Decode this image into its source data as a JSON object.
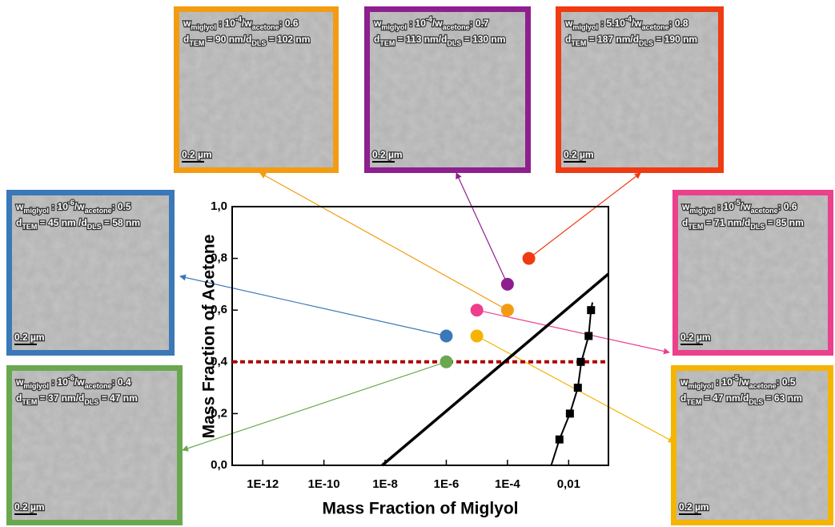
{
  "chart_data": {
    "type": "scatter",
    "x_label": "Mass Fraction of Miglyol",
    "y_label": "Mass Fraction of Acetone",
    "log_x": true,
    "xlim": [
      1e-13,
      0.2
    ],
    "xticks": [
      {
        "value": 1e-12,
        "label": "1E-12"
      },
      {
        "value": 1e-10,
        "label": "1E-10"
      },
      {
        "value": 1e-08,
        "label": "1E-8"
      },
      {
        "value": 1e-06,
        "label": "1E-6"
      },
      {
        "value": 0.0001,
        "label": "1E-4"
      },
      {
        "value": 0.01,
        "label": "0,01"
      }
    ],
    "ylim": [
      0,
      1
    ],
    "yticks": [
      {
        "value": 0,
        "label": "0,0"
      },
      {
        "value": 0.2,
        "label": "0,2"
      },
      {
        "value": 0.4,
        "label": "0,4"
      },
      {
        "value": 0.6,
        "label": "0,6"
      },
      {
        "value": 0.8,
        "label": "0,8"
      },
      {
        "value": 1,
        "label": "1,0"
      }
    ],
    "points": {
      "x": [
        0.0001,
        0.0001,
        0.0005,
        1e-06,
        1e-05,
        1e-06,
        1e-05
      ],
      "values": [
        0.6,
        0.7,
        0.8,
        0.5,
        0.6,
        0.4,
        0.5
      ],
      "colors": [
        "#f39c12",
        "#8e1f8e",
        "#f03a12",
        "#3a78b8",
        "#ec3f8c",
        "#6aa84f",
        "#f4b400"
      ]
    },
    "boundary": {
      "x": [
        8e-09,
        0.2
      ],
      "values": [
        0,
        0.74
      ],
      "color": "#000000"
    },
    "fit": {
      "x": [
        0.0027,
        0.005,
        0.011,
        0.02,
        0.026,
        0.045,
        0.054,
        0.06
      ],
      "values": [
        0,
        0.1,
        0.2,
        0.3,
        0.4,
        0.5,
        0.6,
        0.63
      ],
      "color": "#000000"
    },
    "squares": {
      "x": [
        0.005,
        0.011,
        0.02,
        0.025,
        0.045,
        0.054
      ],
      "values": [
        0.1,
        0.2,
        0.3,
        0.4,
        0.5,
        0.6
      ],
      "color": "#000000"
    },
    "reference_line": {
      "y": 0.4,
      "color": "#b00000"
    }
  },
  "panels": [
    {
      "color": "#f39c12",
      "line1": [
        {
          "text": "w"
        },
        {
          "text": "miglyol",
          "pos": "sub"
        },
        {
          "text": " : 10"
        },
        {
          "text": "-4",
          "pos": "sup"
        },
        {
          "text": "/w"
        },
        {
          "text": "acetone",
          "pos": "sub"
        },
        {
          "text": ": 0.6"
        }
      ],
      "line2": [
        {
          "text": "d"
        },
        {
          "text": "TEM",
          "pos": "sub"
        },
        {
          "text": " = 90 nm/d"
        },
        {
          "text": "DLS",
          "pos": "sub"
        },
        {
          "text": " = 102 nm"
        }
      ],
      "scale": "0.2 µm"
    },
    {
      "color": "#8e1f8e",
      "line1": [
        {
          "text": "w"
        },
        {
          "text": "miglyol",
          "pos": "sub"
        },
        {
          "text": " : 10"
        },
        {
          "text": "-4",
          "pos": "sup"
        },
        {
          "text": "/w"
        },
        {
          "text": "acetone",
          "pos": "sub"
        },
        {
          "text": ": 0.7"
        }
      ],
      "line2": [
        {
          "text": "d"
        },
        {
          "text": "TEM",
          "pos": "sub"
        },
        {
          "text": " = 113 nm/d"
        },
        {
          "text": "DLS",
          "pos": "sub"
        },
        {
          "text": " = 130 nm"
        }
      ],
      "scale": "0.2 µm"
    },
    {
      "color": "#f03a12",
      "line1": [
        {
          "text": "w"
        },
        {
          "text": "miglyol",
          "pos": "sub"
        },
        {
          "text": " : 5.10"
        },
        {
          "text": "-4",
          "pos": "sup"
        },
        {
          "text": "/w"
        },
        {
          "text": "acetone",
          "pos": "sub"
        },
        {
          "text": ": 0.8"
        }
      ],
      "line2": [
        {
          "text": "d"
        },
        {
          "text": "TEM",
          "pos": "sub"
        },
        {
          "text": " = 187 nm/d"
        },
        {
          "text": "DLS",
          "pos": "sub"
        },
        {
          "text": " = 190 nm"
        }
      ],
      "scale": "0.2 µm"
    },
    {
      "color": "#3a78b8",
      "line1": [
        {
          "text": "w"
        },
        {
          "text": "miglyol",
          "pos": "sub"
        },
        {
          "text": " : 10"
        },
        {
          "text": "-6",
          "pos": "sup"
        },
        {
          "text": "/w"
        },
        {
          "text": "acetone",
          "pos": "sub"
        },
        {
          "text": ": 0.5"
        }
      ],
      "line2": [
        {
          "text": "d"
        },
        {
          "text": "TEM",
          "pos": "sub"
        },
        {
          "text": " = 45 nm /d"
        },
        {
          "text": "DLS",
          "pos": "sub"
        },
        {
          "text": " = 58 nm"
        }
      ],
      "scale": "0.2 µm"
    },
    {
      "color": "#ec3f8c",
      "line1": [
        {
          "text": "w"
        },
        {
          "text": "miglyol",
          "pos": "sub"
        },
        {
          "text": " : 10"
        },
        {
          "text": "-5",
          "pos": "sup"
        },
        {
          "text": "/w"
        },
        {
          "text": "acetone",
          "pos": "sub"
        },
        {
          "text": ": 0.6"
        }
      ],
      "line2": [
        {
          "text": "d"
        },
        {
          "text": "TEM",
          "pos": "sub"
        },
        {
          "text": " = 71 nm/d"
        },
        {
          "text": "DLS",
          "pos": "sub"
        },
        {
          "text": " = 85 nm"
        }
      ],
      "scale": "0.2 µm"
    },
    {
      "color": "#6aa84f",
      "line1": [
        {
          "text": "w"
        },
        {
          "text": "miglyol",
          "pos": "sub"
        },
        {
          "text": " : 10"
        },
        {
          "text": "-6",
          "pos": "sup"
        },
        {
          "text": "/w"
        },
        {
          "text": "acetone",
          "pos": "sub"
        },
        {
          "text": ": 0.4"
        }
      ],
      "line2": [
        {
          "text": "d"
        },
        {
          "text": "TEM",
          "pos": "sub"
        },
        {
          "text": " = 37 nm/d"
        },
        {
          "text": "DLS",
          "pos": "sub"
        },
        {
          "text": " = 47 nm"
        }
      ],
      "scale": "0.2 µm"
    },
    {
      "color": "#f4b400",
      "line1": [
        {
          "text": "w"
        },
        {
          "text": "miglyol",
          "pos": "sub"
        },
        {
          "text": " : 10"
        },
        {
          "text": "-5",
          "pos": "sup"
        },
        {
          "text": "/w"
        },
        {
          "text": "acetone",
          "pos": "sub"
        },
        {
          "text": ": 0.5"
        }
      ],
      "line2": [
        {
          "text": "d"
        },
        {
          "text": "TEM",
          "pos": "sub"
        },
        {
          "text": " = 47 nm/d"
        },
        {
          "text": "DLS",
          "pos": "sub"
        },
        {
          "text": " = 63 nm"
        }
      ],
      "scale": "0.2 µm"
    }
  ]
}
